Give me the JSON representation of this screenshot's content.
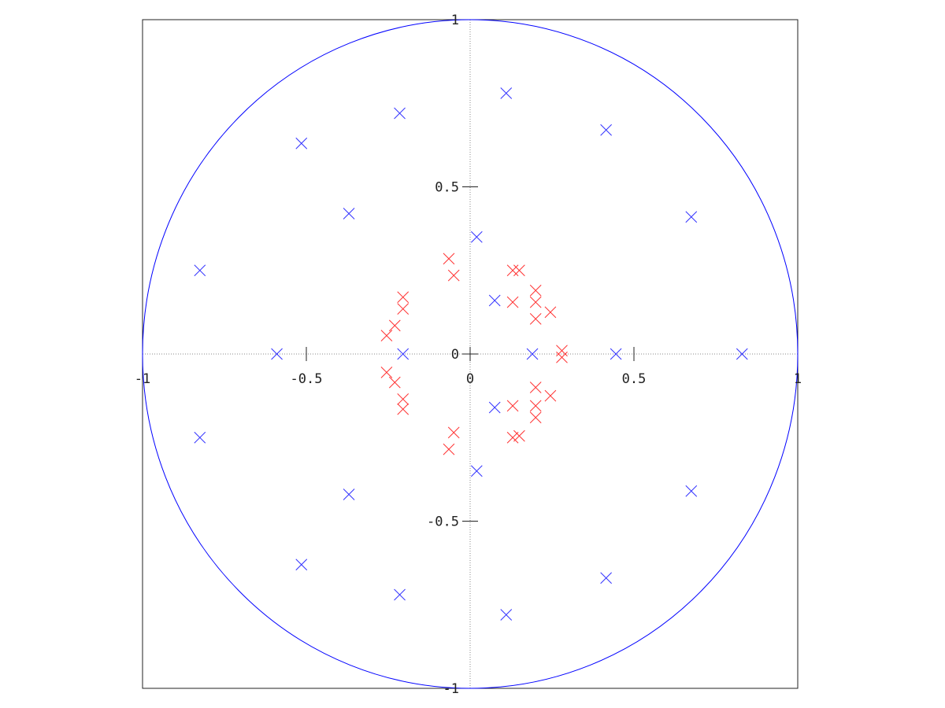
{
  "chart_data": {
    "type": "scatter",
    "title": "",
    "xlabel": "",
    "ylabel": "",
    "xlim": [
      -1,
      1
    ],
    "ylim": [
      -1,
      1
    ],
    "grid": false,
    "legend": "none",
    "x_ticks": [
      {
        "value": -1,
        "label": "-1"
      },
      {
        "value": -0.5,
        "label": "-0.5"
      },
      {
        "value": 0,
        "label": "0"
      },
      {
        "value": 0.5,
        "label": "0.5"
      },
      {
        "value": 1,
        "label": "1"
      }
    ],
    "y_ticks": [
      {
        "value": 1,
        "label": "1"
      },
      {
        "value": 0.5,
        "label": "0.5"
      },
      {
        "value": 0,
        "label": "0"
      },
      {
        "value": -0.5,
        "label": "-0.5"
      },
      {
        "value": -1,
        "label": "-1"
      }
    ],
    "unit_circle": {
      "center": [
        0,
        0
      ],
      "radius": 1,
      "color": "#0000ff"
    },
    "zero_lines": {
      "color": "#888888",
      "style": "dotted"
    },
    "series": [
      {
        "marker": "x",
        "color": "#3333ff",
        "points": [
          [
            0.11,
            0.78
          ],
          [
            -0.215,
            0.72
          ],
          [
            -0.515,
            0.63
          ],
          [
            0.415,
            0.67
          ],
          [
            -0.37,
            0.42
          ],
          [
            0.675,
            0.41
          ],
          [
            0.02,
            0.35
          ],
          [
            -0.825,
            0.25
          ],
          [
            0.075,
            0.16
          ],
          [
            -0.59,
            0.0
          ],
          [
            -0.205,
            0.0
          ],
          [
            0.19,
            0.0
          ],
          [
            0.445,
            0.0
          ],
          [
            0.83,
            0.0
          ],
          [
            0.075,
            -0.16
          ],
          [
            -0.825,
            -0.25
          ],
          [
            0.02,
            -0.35
          ],
          [
            -0.37,
            -0.42
          ],
          [
            0.675,
            -0.41
          ],
          [
            -0.515,
            -0.63
          ],
          [
            0.415,
            -0.67
          ],
          [
            -0.215,
            -0.72
          ],
          [
            0.11,
            -0.78
          ]
        ]
      },
      {
        "marker": "x",
        "color": "#ff3333",
        "points": [
          [
            -0.065,
            0.285
          ],
          [
            -0.05,
            0.235
          ],
          [
            0.13,
            0.25
          ],
          [
            0.15,
            0.25
          ],
          [
            0.2,
            0.19
          ],
          [
            -0.205,
            0.17
          ],
          [
            -0.205,
            0.135
          ],
          [
            0.13,
            0.155
          ],
          [
            0.2,
            0.155
          ],
          [
            0.245,
            0.125
          ],
          [
            0.2,
            0.105
          ],
          [
            -0.23,
            0.085
          ],
          [
            -0.255,
            0.055
          ],
          [
            0.28,
            0.01
          ],
          [
            0.28,
            -0.01
          ],
          [
            -0.255,
            -0.055
          ],
          [
            -0.23,
            -0.085
          ],
          [
            0.2,
            -0.1
          ],
          [
            0.245,
            -0.125
          ],
          [
            -0.205,
            -0.135
          ],
          [
            -0.205,
            -0.165
          ],
          [
            0.13,
            -0.155
          ],
          [
            0.2,
            -0.155
          ],
          [
            0.2,
            -0.19
          ],
          [
            0.13,
            -0.25
          ],
          [
            0.15,
            -0.245
          ],
          [
            -0.05,
            -0.235
          ],
          [
            -0.065,
            -0.285
          ]
        ]
      }
    ]
  }
}
